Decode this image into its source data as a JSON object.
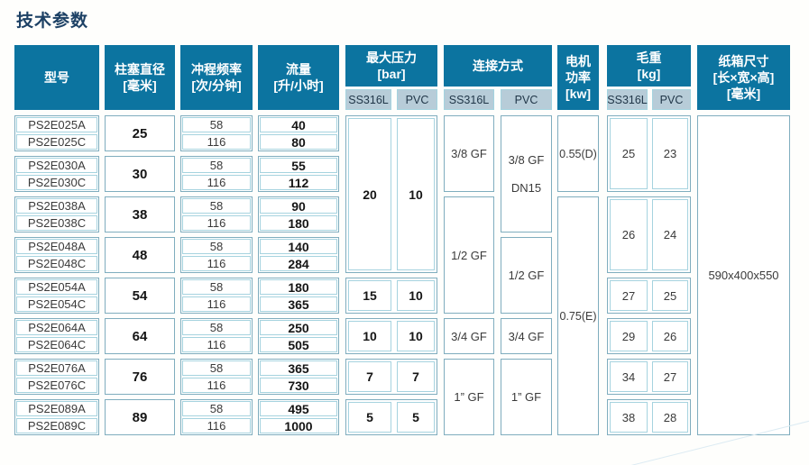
{
  "title": "技术参数",
  "table": {
    "header": {
      "model": "型号",
      "diameter_l1": "柱塞直径",
      "diameter_l2": "[毫米]",
      "frequency_l1": "冲程频率",
      "frequency_l2": "[次/分钟]",
      "flow_l1": "流量",
      "flow_l2": "[升/小时]",
      "pressure_l1": "最大压力",
      "pressure_l2": "[bar]",
      "connection": "连接方式",
      "motor_l1": "电机",
      "motor_l2": "功率",
      "motor_l3": "[kw]",
      "weight_l1": "毛重",
      "weight_l2": "[kg]",
      "carton_l1": "纸箱尺寸",
      "carton_l2": "[长×宽×高]",
      "carton_l3": "[毫米]",
      "sub_ss": "SS316L",
      "sub_pvc": "PVC"
    },
    "models": [
      "PS2E025A",
      "PS2E025C",
      "PS2E030A",
      "PS2E030C",
      "PS2E038A",
      "PS2E038C",
      "PS2E048A",
      "PS2E048C",
      "PS2E054A",
      "PS2E054C",
      "PS2E064A",
      "PS2E064C",
      "PS2E076A",
      "PS2E076C",
      "PS2E089A",
      "PS2E089C"
    ],
    "diameters": [
      "25",
      "30",
      "38",
      "48",
      "54",
      "64",
      "76",
      "89"
    ],
    "frequencies": [
      "58",
      "116",
      "58",
      "116",
      "58",
      "116",
      "58",
      "116",
      "58",
      "116",
      "58",
      "116",
      "58",
      "116",
      "58",
      "116"
    ],
    "flows": [
      "40",
      "80",
      "55",
      "112",
      "90",
      "180",
      "140",
      "284",
      "180",
      "365",
      "250",
      "505",
      "365",
      "730",
      "495",
      "1000"
    ],
    "pressure_ss316l": [
      "20",
      "15",
      "10",
      "7",
      "5"
    ],
    "pressure_pvc": [
      "10",
      "10",
      "10",
      "7",
      "5"
    ],
    "connection_ss316l": [
      "3/8 GF",
      "1/2 GF",
      "3/4 GF",
      "1” GF"
    ],
    "connection_pvc": [
      {
        "l1": "3/8 GF",
        "l2": "DN15"
      },
      {
        "l1": "1/2 GF"
      },
      {
        "l1": "3/4 GF"
      },
      {
        "l1": "1” GF"
      }
    ],
    "motor_power": [
      "0.55(D)",
      "0.75(E)"
    ],
    "weight_ss316l": [
      "25",
      "26",
      "27",
      "29",
      "34",
      "38"
    ],
    "weight_pvc": [
      "23",
      "24",
      "25",
      "26",
      "27",
      "28"
    ],
    "carton_size": "590x400x550",
    "colors": {
      "header_bg": "#0c74a0",
      "subheader_bg": "#b7ccd8",
      "border_outer": "#7fadbe",
      "border_inner": "#a6d3df",
      "title_text": "#1d4165"
    }
  }
}
